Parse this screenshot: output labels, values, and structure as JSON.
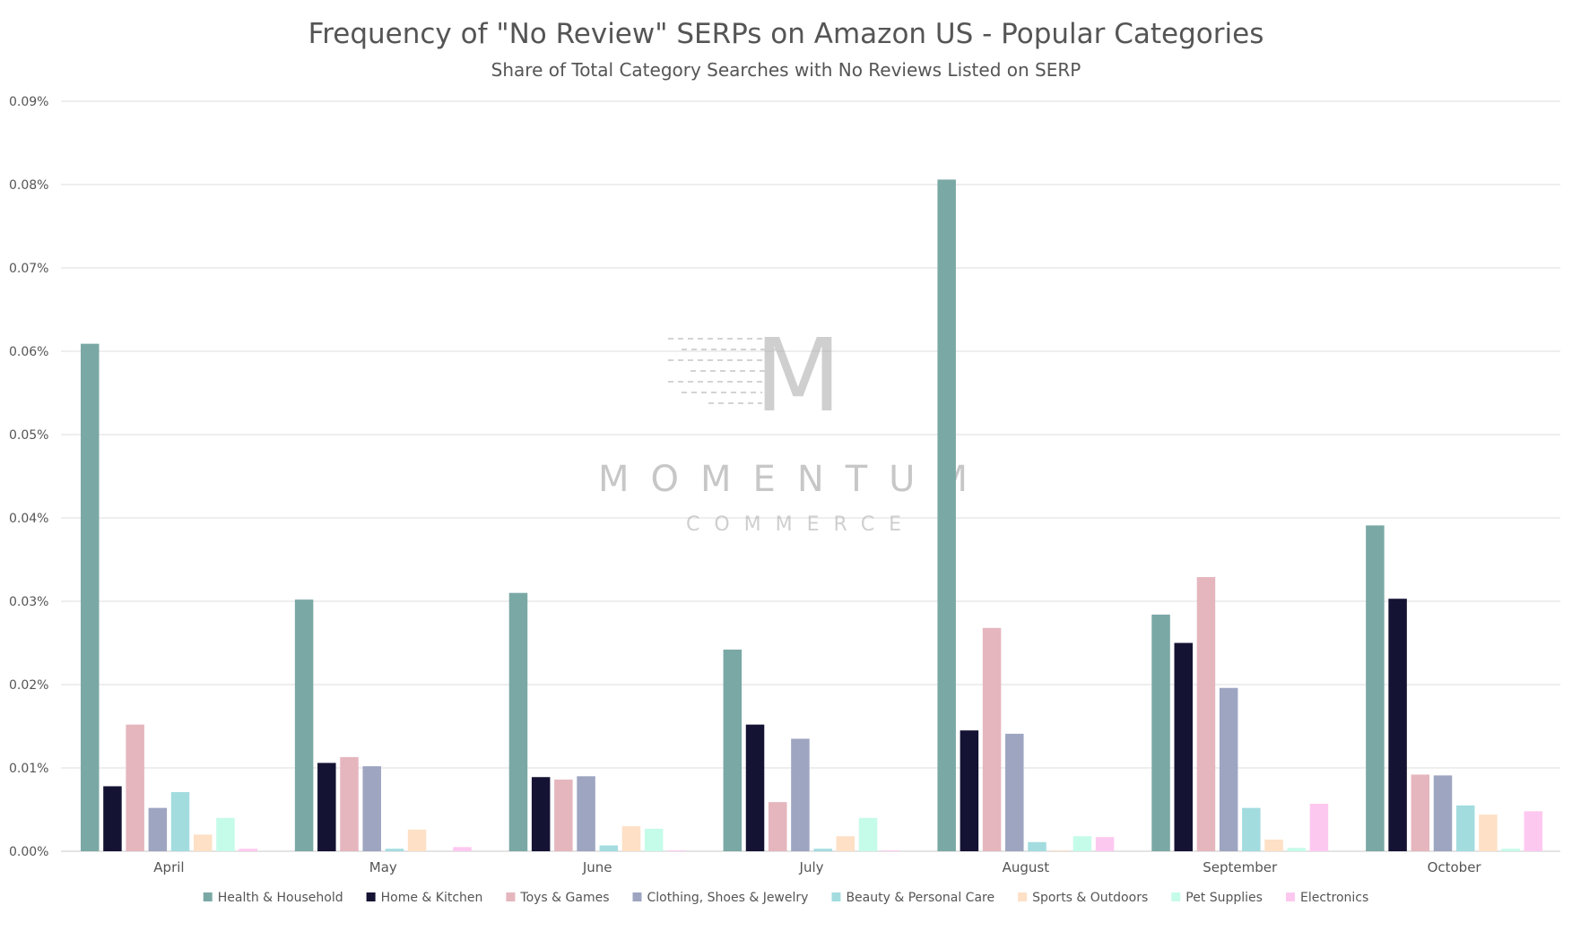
{
  "chart_data": {
    "type": "bar",
    "title": "Frequency of \"No Review\" SERPs on Amazon US - Popular Categories",
    "subtitle": "Share of Total Category Searches with No Reviews Listed on SERP",
    "xlabel": "",
    "ylabel": "",
    "ylim": [
      0,
      0.09
    ],
    "yticks": [
      "0.00%",
      "0.01%",
      "0.02%",
      "0.03%",
      "0.04%",
      "0.05%",
      "0.06%",
      "0.07%",
      "0.08%",
      "0.09%"
    ],
    "grid": true,
    "legend_position": "bottom",
    "categories": [
      "April",
      "May",
      "June",
      "July",
      "August",
      "September",
      "October"
    ],
    "series": [
      {
        "name": "Health & Household",
        "color": "#7aa8a5",
        "values": [
          0.0609,
          0.0302,
          0.031,
          0.0242,
          0.0806,
          0.0284,
          0.0391
        ]
      },
      {
        "name": "Home & Kitchen",
        "color": "#151334",
        "values": [
          0.0078,
          0.0106,
          0.0089,
          0.0152,
          0.0145,
          0.025,
          0.0303
        ]
      },
      {
        "name": "Toys & Games",
        "color": "#e5b6be",
        "values": [
          0.0152,
          0.0113,
          0.0086,
          0.0059,
          0.0268,
          0.0329,
          0.0092
        ]
      },
      {
        "name": "Clothing, Shoes & Jewelry",
        "color": "#9da5c1",
        "values": [
          0.0052,
          0.0102,
          0.009,
          0.0135,
          0.0141,
          0.0196,
          0.0091
        ]
      },
      {
        "name": "Beauty & Personal Care",
        "color": "#a3dcdf",
        "values": [
          0.0071,
          0.0003,
          0.0007,
          0.0003,
          0.0011,
          0.0052,
          0.0055
        ]
      },
      {
        "name": "Sports & Outdoors",
        "color": "#fde0c6",
        "values": [
          0.002,
          0.0026,
          0.003,
          0.0018,
          0.0001,
          0.0014,
          0.0044
        ]
      },
      {
        "name": "Pet Supplies",
        "color": "#c5fbe9",
        "values": [
          0.004,
          0.0,
          0.0027,
          0.004,
          0.0018,
          0.0004,
          0.0003
        ]
      },
      {
        "name": "Electronics",
        "color": "#fdc8ef",
        "values": [
          0.0003,
          0.0005,
          0.0001,
          0.0001,
          0.0017,
          0.0057,
          0.0048
        ]
      }
    ]
  },
  "watermark": {
    "brand": "MOMENTUM",
    "sub": "COMMERCE",
    "monogram": "M"
  }
}
